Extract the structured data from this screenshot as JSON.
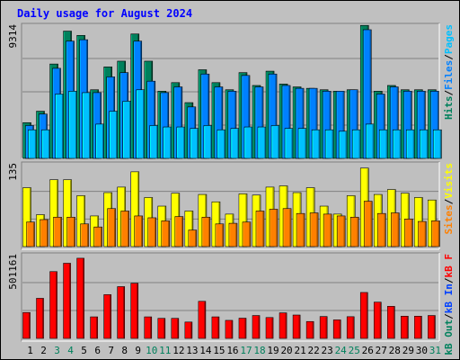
{
  "chart_data": {
    "type": "bar",
    "title": "Daily usage for August 2024",
    "colors": {
      "background": "#c0c0c0",
      "panel": "#bfbfbf",
      "title_text": "#0000ff",
      "hits": "#00805c",
      "files": "#0080ff",
      "pages": "#00c0ff",
      "visits": "#ffff00",
      "sites": "#ff8000",
      "kbytes": "#ff0000",
      "day_highlight": "#00805c"
    },
    "categories": [
      "1",
      "2",
      "3",
      "4",
      "5",
      "6",
      "7",
      "8",
      "9",
      "10",
      "11",
      "12",
      "13",
      "14",
      "15",
      "16",
      "17",
      "18",
      "19",
      "20",
      "21",
      "22",
      "23",
      "24",
      "25",
      "26",
      "27",
      "28",
      "29",
      "30",
      "31"
    ],
    "weekend_days": [
      "3",
      "4",
      "10",
      "11",
      "17",
      "18",
      "24",
      "25",
      "31"
    ],
    "panels": [
      {
        "id": "hits",
        "ymax_label": "9314",
        "ymax": 9314,
        "legend": [
          "Pages",
          "/",
          "Files",
          "/",
          "Hits"
        ],
        "series": [
          {
            "name": "Hits",
            "values": [
              2500,
              3300,
              6600,
              8900,
              8600,
              4800,
              6400,
              6800,
              8700,
              6800,
              4700,
              5300,
              3900,
              6200,
              5300,
              4800,
              6000,
              5100,
              6100,
              5200,
              5000,
              4900,
              4800,
              4700,
              4800,
              9300,
              4700,
              5100,
              4800,
              4800,
              4800
            ]
          },
          {
            "name": "Files",
            "values": [
              2300,
              3100,
              6300,
              8200,
              8300,
              4600,
              5700,
              6000,
              8200,
              5400,
              4600,
              5000,
              3600,
              5900,
              5000,
              4700,
              5800,
              5000,
              5900,
              5100,
              4900,
              4900,
              4700,
              4700,
              4800,
              9000,
              4500,
              5000,
              4700,
              4700,
              4700
            ]
          },
          {
            "name": "Pages",
            "values": [
              2000,
              2000,
              4500,
              4700,
              4600,
              2400,
              3300,
              4000,
              4800,
              2300,
              2200,
              2200,
              2100,
              2300,
              2000,
              2100,
              2200,
              2200,
              2300,
              2100,
              2100,
              2000,
              2000,
              1900,
              2000,
              2400,
              2000,
              2000,
              2000,
              2000,
              2000
            ]
          }
        ]
      },
      {
        "id": "visits",
        "ymax_label": "135",
        "ymax": 135,
        "legend": [
          "Visits",
          "/",
          "Sites"
        ],
        "series": [
          {
            "name": "Visits",
            "values": [
              96,
              52,
              109,
              109,
              83,
              50,
              88,
              97,
              122,
              80,
              66,
              87,
              58,
              85,
              73,
              53,
              86,
              84,
              97,
              99,
              88,
              96,
              66,
              53,
              83,
              128,
              85,
              93,
              87,
              80,
              76
            ]
          },
          {
            "name": "Sites",
            "values": [
              40,
              44,
              48,
              48,
              37,
              32,
              62,
              58,
              50,
              47,
              42,
              49,
              27,
              48,
              37,
              38,
              40,
              58,
              61,
              62,
              54,
              55,
              53,
              50,
              48,
              74,
              54,
              55,
              45,
              41,
              42
            ]
          }
        ]
      },
      {
        "id": "kbytes",
        "ymax_label": "501161",
        "ymax": 501161,
        "legend": [
          "kB F",
          "/",
          "kB In",
          "/",
          "kB Out"
        ],
        "series": [
          {
            "name": "kB F",
            "values": [
              155000,
              240000,
              400000,
              450000,
              480000,
              129000,
              262000,
              310000,
              330000,
              129000,
              120000,
              120000,
              98000,
              222000,
              129000,
              108000,
              121000,
              137000,
              125000,
              153000,
              140000,
              101000,
              131000,
              111000,
              130000,
              275000,
              217000,
              192000,
              133000,
              133000,
              137000
            ]
          }
        ]
      }
    ]
  }
}
